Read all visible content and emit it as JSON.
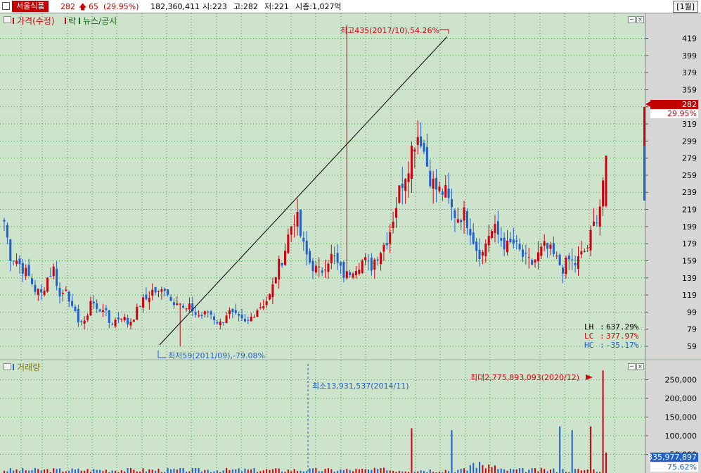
{
  "header": {
    "stock_name": "서울식품",
    "price": "282",
    "change": "65",
    "change_pct": "(29.95%)",
    "volume": "182,360,411",
    "open": "시:223",
    "high": "고:282",
    "low": "저:221",
    "market_cap": "시총:1,027억",
    "period": "[1월]"
  },
  "price_pane": {
    "legend": [
      "가격(수정)",
      "락",
      "뉴스/공시"
    ],
    "max_label": "최고435(2017/10),54.26%",
    "min_label": "최저59(2011/09),-79.08%",
    "current_price_tag": "282",
    "current_pct_tag": "29.95%",
    "stats": [
      {
        "key": "LH",
        "sep": ":",
        "value": "637.29%",
        "color": "#000000"
      },
      {
        "key": "LC",
        "sep": ":",
        "value": "377.97%",
        "color": "#d00000"
      },
      {
        "key": "HC",
        "sep": ":",
        "value": "-35.17%",
        "color": "#1f5fd0"
      }
    ]
  },
  "volume_pane": {
    "legend": "거래량",
    "max_label": "최대2,775,893,093(2020/12)",
    "min_label": "최소13,931,537(2014/11)",
    "current_volume_tag": "335,977,897",
    "current_pct_tag": "75.62%"
  },
  "colors": {
    "up": "#d0000f",
    "down": "#1f5fd0",
    "bg": "#cde3cc",
    "grid": "#4a9a4a",
    "axis_bg": "#d6d6d6"
  },
  "chart_data": [
    {
      "type": "candlestick",
      "ylim": [
        50,
        432
      ],
      "y_ticks": [
        59,
        79,
        99,
        119,
        139,
        159,
        179,
        199,
        219,
        239,
        259,
        279,
        299,
        319,
        339,
        359,
        379,
        399,
        419
      ],
      "extrema": {
        "high": 435,
        "low": 59
      },
      "close_path": [
        205,
        165,
        160,
        150,
        140,
        125,
        120,
        140,
        150,
        115,
        130,
        100,
        90,
        85,
        115,
        100,
        105,
        85,
        90,
        95,
        85,
        95,
        110,
        115,
        125,
        120,
        130,
        110,
        115,
        100,
        105,
        95,
        95,
        100,
        90,
        85,
        100,
        95,
        90,
        85,
        95,
        105,
        110,
        120,
        150,
        165,
        195,
        215,
        180,
        160,
        150,
        145,
        160,
        165,
        150,
        140,
        150,
        155,
        160,
        150,
        165,
        175,
        190,
        220,
        250,
        270,
        300,
        310,
        275,
        250,
        240,
        240,
        220,
        210,
        215,
        200,
        175,
        165,
        190,
        195,
        185,
        175,
        180,
        170,
        160,
        155,
        165,
        175,
        170,
        160,
        150,
        160,
        155,
        165,
        175,
        200,
        225,
        282
      ]
    },
    {
      "type": "bar",
      "series": [
        {
          "name": "거래량",
          "unit": "shares"
        }
      ],
      "ylim": [
        0,
        290000000
      ],
      "y_ticks": [
        "50,000",
        "100,000",
        "150,000",
        "200,000",
        "250,000"
      ],
      "extrema": {
        "max": 2775893093,
        "min": 13931537
      }
    }
  ]
}
